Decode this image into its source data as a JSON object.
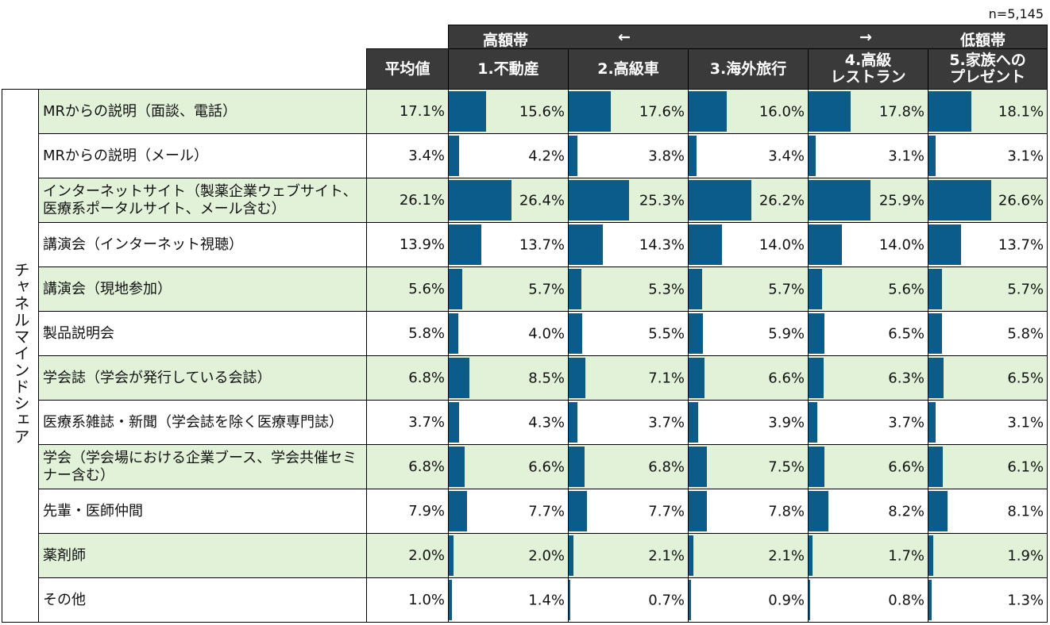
{
  "sample_size": "n=5,145",
  "range_header": {
    "high": "高額帯",
    "arrow_left": "←",
    "arrow_right": "→",
    "low": "低額帯"
  },
  "row_group_label": "チャネルマインドシェア",
  "columns": [
    "平均値",
    "1.不動産",
    "2.高級車",
    "3.海外旅行",
    "4.高級\nレストラン",
    "5.家族への\nプレゼント"
  ],
  "colors": {
    "bar": "#0b5c8a",
    "header_bg": "#3a3a3a",
    "row_highlight": "#e2f2d9"
  },
  "chart_data": {
    "type": "table",
    "unit": "%",
    "rows": [
      {
        "label": "MRからの説明（面談、電話）",
        "avg": "17.1%",
        "values": [
          15.6,
          17.6,
          16.0,
          17.8,
          18.1
        ],
        "display": [
          "15.6%",
          "17.6%",
          "16.0%",
          "17.8%",
          "18.1%"
        ],
        "shade": "green"
      },
      {
        "label": "MRからの説明（メール）",
        "avg": "3.4%",
        "values": [
          4.2,
          3.8,
          3.4,
          3.1,
          3.1
        ],
        "display": [
          "4.2%",
          "3.8%",
          "3.4%",
          "3.1%",
          "3.1%"
        ],
        "shade": "white"
      },
      {
        "label": "インターネットサイト（製薬企業ウェブサイト、医療系ポータルサイト、メール含む）",
        "avg": "26.1%",
        "values": [
          26.4,
          25.3,
          26.2,
          25.9,
          26.6
        ],
        "display": [
          "26.4%",
          "25.3%",
          "26.2%",
          "25.9%",
          "26.6%"
        ],
        "shade": "green"
      },
      {
        "label": "講演会（インターネット視聴）",
        "avg": "13.9%",
        "values": [
          13.7,
          14.3,
          14.0,
          14.0,
          13.7
        ],
        "display": [
          "13.7%",
          "14.3%",
          "14.0%",
          "14.0%",
          "13.7%"
        ],
        "shade": "white"
      },
      {
        "label": "講演会（現地参加）",
        "avg": "5.6%",
        "values": [
          5.7,
          5.3,
          5.7,
          5.6,
          5.7
        ],
        "display": [
          "5.7%",
          "5.3%",
          "5.7%",
          "5.6%",
          "5.7%"
        ],
        "shade": "green"
      },
      {
        "label": "製品説明会",
        "avg": "5.8%",
        "values": [
          4.0,
          5.5,
          5.9,
          6.5,
          5.8
        ],
        "display": [
          "4.0%",
          "5.5%",
          "5.9%",
          "6.5%",
          "5.8%"
        ],
        "shade": "white"
      },
      {
        "label": "学会誌（学会が発行している会誌）",
        "avg": "6.8%",
        "values": [
          8.5,
          7.1,
          6.6,
          6.3,
          6.5
        ],
        "display": [
          "8.5%",
          "7.1%",
          "6.6%",
          "6.3%",
          "6.5%"
        ],
        "shade": "green"
      },
      {
        "label": "医療系雑誌・新聞（学会誌を除く医療専門誌）",
        "avg": "3.7%",
        "values": [
          4.3,
          3.7,
          3.9,
          3.7,
          3.1
        ],
        "display": [
          "4.3%",
          "3.7%",
          "3.9%",
          "3.7%",
          "3.1%"
        ],
        "shade": "white"
      },
      {
        "label": "学会（学会場における企業ブース、学会共催セミナー含む）",
        "avg": "6.8%",
        "values": [
          6.6,
          6.8,
          7.5,
          6.6,
          6.1
        ],
        "display": [
          "6.6%",
          "6.8%",
          "7.5%",
          "6.6%",
          "6.1%"
        ],
        "shade": "green"
      },
      {
        "label": "先輩・医師仲間",
        "avg": "7.9%",
        "values": [
          7.7,
          7.7,
          7.8,
          8.2,
          8.1
        ],
        "display": [
          "7.7%",
          "7.7%",
          "7.8%",
          "8.2%",
          "8.1%"
        ],
        "shade": "white"
      },
      {
        "label": "薬剤師",
        "avg": "2.0%",
        "values": [
          2.0,
          2.1,
          2.1,
          1.7,
          1.9
        ],
        "display": [
          "2.0%",
          "2.1%",
          "2.1%",
          "1.7%",
          "1.9%"
        ],
        "shade": "green"
      },
      {
        "label": "その他",
        "avg": "1.0%",
        "values": [
          1.4,
          0.7,
          0.9,
          0.8,
          1.3
        ],
        "display": [
          "1.4%",
          "0.7%",
          "0.9%",
          "0.8%",
          "1.3%"
        ],
        "shade": "white"
      }
    ],
    "bar_scale_max": 50
  }
}
